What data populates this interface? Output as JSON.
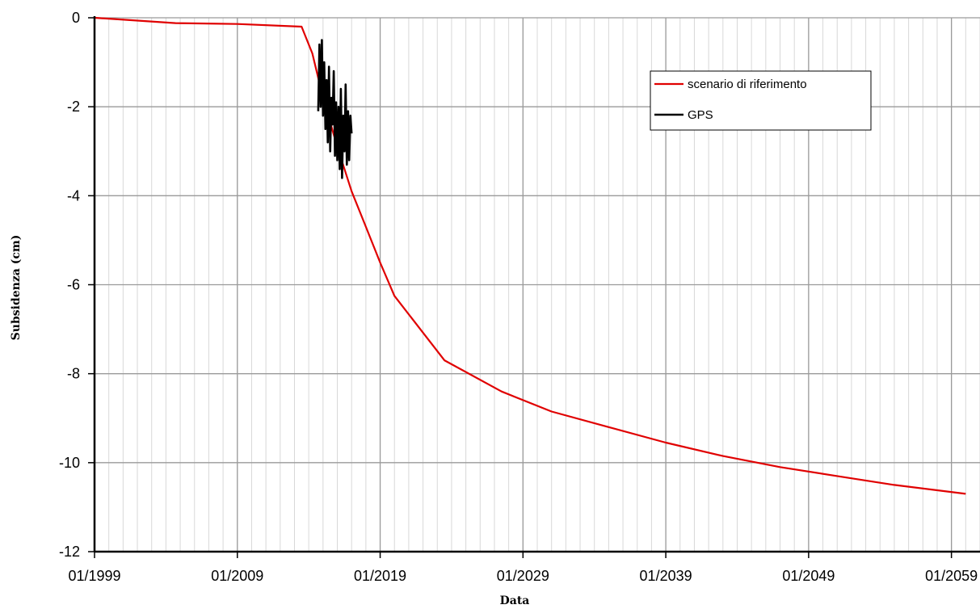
{
  "chart_data": {
    "type": "line",
    "title": "",
    "xlabel": "Data",
    "ylabel": "Subsidenza (cm)",
    "xlim": [
      "1999-01",
      "2061-01"
    ],
    "ylim": [
      -12,
      0
    ],
    "grid": true,
    "x_ticks": [
      "01/1999",
      "01/2009",
      "01/2019",
      "01/2029",
      "01/2039",
      "01/2049",
      "01/2059"
    ],
    "y_ticks": [
      "0",
      "-2",
      "-4",
      "-6",
      "-8",
      "-10",
      "-12"
    ],
    "legend_position": "top-right",
    "colors": {
      "scenario": "#e00000",
      "gps": "#000000",
      "grid_major": "#9a9a9a",
      "grid_minor": "#d8d8d8"
    },
    "series": [
      {
        "name": "scenario di riferimento",
        "color": "#e00000",
        "x": [
          "1999-01",
          "2004-09",
          "2009-01",
          "2013-07",
          "2014-04",
          "2015-01",
          "2016-01",
          "2017-01",
          "2018-01",
          "2019-01",
          "2020-01",
          "2023-07",
          "2027-07",
          "2031-01",
          "2035-01",
          "2039-01",
          "2043-01",
          "2047-01",
          "2051-01",
          "2055-01",
          "2060-01"
        ],
        "y": [
          0.0,
          -0.12,
          -0.14,
          -0.2,
          -0.8,
          -1.8,
          -2.9,
          -3.9,
          -4.7,
          -5.5,
          -6.25,
          -7.7,
          -8.4,
          -8.85,
          -9.2,
          -9.55,
          -9.85,
          -10.1,
          -10.3,
          -10.5,
          -10.7
        ]
      },
      {
        "name": "GPS",
        "color": "#000000",
        "x": [
          "2014-09",
          "2014-10",
          "2014-11",
          "2014-12",
          "2015-01",
          "2015-02",
          "2015-03",
          "2015-04",
          "2015-05",
          "2015-06",
          "2015-07",
          "2015-08",
          "2015-09",
          "2015-10",
          "2015-11",
          "2015-12",
          "2016-01",
          "2016-02",
          "2016-03",
          "2016-04",
          "2016-05",
          "2016-06",
          "2016-07",
          "2016-08",
          "2016-09",
          "2016-10",
          "2016-11",
          "2016-12",
          "2017-01"
        ],
        "y": [
          -2.1,
          -0.6,
          -2.0,
          -0.5,
          -2.2,
          -1.0,
          -2.5,
          -1.4,
          -2.8,
          -1.1,
          -3.0,
          -1.8,
          -2.4,
          -1.2,
          -3.1,
          -1.9,
          -3.2,
          -2.0,
          -3.4,
          -1.6,
          -3.6,
          -2.2,
          -3.0,
          -1.5,
          -3.3,
          -2.1,
          -3.2,
          -2.2,
          -2.6
        ]
      }
    ]
  }
}
